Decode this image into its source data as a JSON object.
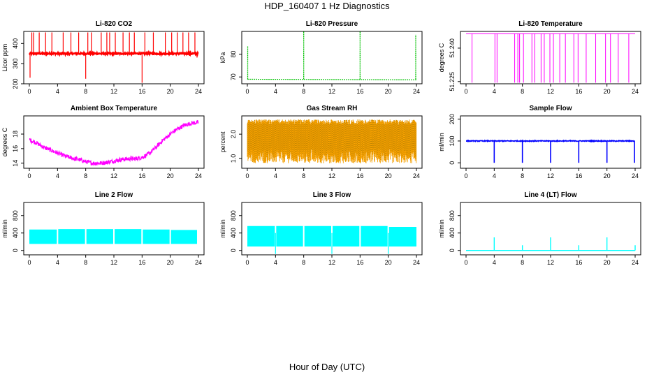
{
  "page": {
    "title": "HDP_160407  1 Hz Diagnostics",
    "xlabel": "Hour of Day (UTC)"
  },
  "chart_data": [
    {
      "type": "line",
      "title": "Li-820 CO2",
      "ylabel": "Licor ppm",
      "color": "#ff0000",
      "xlim": [
        0,
        24
      ],
      "xticks": [
        "0",
        "4",
        "8",
        "12",
        "16",
        "20",
        "24"
      ],
      "ylim": [
        200,
        460
      ],
      "yticks": [
        "200",
        "300",
        "400"
      ],
      "ytick_values": [
        200,
        300,
        400
      ],
      "baseline": 350,
      "spikes_up_at": [
        0.35,
        0.6,
        1.4,
        2.3,
        3.2,
        4.8,
        5.9,
        7.0,
        8.3,
        8.8,
        10.2,
        11.0,
        11.4,
        12.2,
        13.3,
        14.2,
        14.9,
        16.4,
        17.6,
        19.3,
        20.2,
        21.0,
        21.8,
        22.6,
        23.5
      ],
      "spikes_down_at": [
        [
          0.1,
          230
        ],
        [
          8.0,
          225
        ],
        [
          16.0,
          205
        ],
        [
          23.8,
          330
        ]
      ]
    },
    {
      "type": "line",
      "title": "Li-820 Pressure",
      "ylabel": "kPa",
      "color": "#00c000",
      "xlim": [
        0,
        24
      ],
      "xticks": [
        "0",
        "4",
        "8",
        "12",
        "16",
        "20",
        "24"
      ],
      "ylim": [
        67,
        90
      ],
      "yticks": [
        "70",
        "80"
      ],
      "ytick_values": [
        70,
        80
      ],
      "baseline": 69.0,
      "spikes_up_at": [
        [
          0.05,
          83.5
        ],
        [
          8.0,
          90
        ],
        [
          16.0,
          90
        ],
        [
          23.9,
          88.5
        ]
      ]
    },
    {
      "type": "line",
      "title": "Li-820 Temperature",
      "ylabel": "degrees C",
      "color": "#ff00ff",
      "xlim": [
        0,
        24
      ],
      "xticks": [
        "0",
        "4",
        "8",
        "12",
        "16",
        "20",
        "24"
      ],
      "ylim": [
        51.224,
        51.2475
      ],
      "yticks": [
        "51.225",
        "51.240"
      ],
      "ytick_values": [
        51.225,
        51.24
      ],
      "high_value": 51.2465,
      "low_value": 51.2245,
      "drops_at": [
        0.85,
        4.1,
        4.4,
        6.9,
        7.35,
        7.6,
        8.15,
        9.35,
        9.75,
        10.65,
        11.1,
        11.9,
        12.4,
        13.3,
        14.1,
        15.3,
        15.9,
        17.05,
        18.4,
        19.8,
        20.5,
        21.6,
        23.1
      ]
    },
    {
      "type": "line",
      "title": "Ambient Box Temperature",
      "ylabel": "degrees C",
      "color": "#ff00ff",
      "xlim": [
        0,
        24
      ],
      "xticks": [
        "0",
        "4",
        "8",
        "12",
        "16",
        "20",
        "24"
      ],
      "ylim": [
        13.3,
        20.5
      ],
      "yticks": [
        "14",
        "16",
        "18"
      ],
      "ytick_values": [
        14,
        16,
        18
      ],
      "x": [
        0,
        1,
        2,
        3,
        4,
        5,
        6,
        7,
        8,
        9,
        10,
        11,
        12,
        13,
        14,
        15,
        16,
        17,
        18,
        19,
        20,
        21,
        22,
        23,
        24
      ],
      "y": [
        17.2,
        16.8,
        16.2,
        15.8,
        15.4,
        15.0,
        14.7,
        14.5,
        14.2,
        14.0,
        14.0,
        14.1,
        14.3,
        14.5,
        14.6,
        14.6,
        14.8,
        15.3,
        16.2,
        17.2,
        18.0,
        18.7,
        19.2,
        19.5,
        19.6
      ]
    },
    {
      "type": "line",
      "title": "Gas Stream RH",
      "ylabel": "percent",
      "color": "#ffa500",
      "xlim": [
        0,
        24
      ],
      "xticks": [
        "0",
        "4",
        "8",
        "12",
        "16",
        "20",
        "24"
      ],
      "ylim": [
        0.6,
        2.75
      ],
      "yticks": [
        "1.0",
        "2.0"
      ],
      "ytick_values": [
        1.0,
        2.0
      ],
      "band_upper": 2.6,
      "band_lower": 0.8
    },
    {
      "type": "line",
      "title": "Sample Flow",
      "ylabel": "ml/min",
      "color": "#0000ff",
      "xlim": [
        0,
        24
      ],
      "xticks": [
        "0",
        "4",
        "8",
        "12",
        "16",
        "20",
        "24"
      ],
      "ylim": [
        -25,
        215
      ],
      "yticks": [
        "0",
        "100",
        "200"
      ],
      "ytick_values": [
        0,
        100,
        200
      ],
      "baseline": 100,
      "drops_at": [
        [
          4.0,
          0
        ],
        [
          8.0,
          0
        ],
        [
          12.0,
          0
        ],
        [
          16.0,
          0
        ],
        [
          20.0,
          0
        ],
        [
          23.9,
          0
        ]
      ]
    },
    {
      "type": "area",
      "title": "Line 2 Flow",
      "ylabel": "ml/min",
      "color": "#00ffff",
      "xlim": [
        0,
        24
      ],
      "xticks": [
        "0",
        "4",
        "8",
        "12",
        "16",
        "20",
        "24"
      ],
      "ylim": [
        -100,
        1100
      ],
      "yticks": [
        "0",
        "400",
        "800"
      ],
      "ytick_values": [
        0,
        400,
        800
      ],
      "segments": [
        [
          0.0,
          3.9,
          480,
          150
        ],
        [
          4.1,
          7.9,
          490,
          150
        ],
        [
          8.1,
          11.9,
          490,
          150
        ],
        [
          12.1,
          15.9,
          490,
          150
        ],
        [
          16.1,
          19.9,
          480,
          150
        ],
        [
          20.1,
          23.8,
          470,
          150
        ]
      ]
    },
    {
      "type": "area",
      "title": "Line 3 Flow",
      "ylabel": "ml/min",
      "color": "#00ffff",
      "xlim": [
        0,
        24
      ],
      "xticks": [
        "0",
        "4",
        "8",
        "12",
        "16",
        "20",
        "24"
      ],
      "ylim": [
        -100,
        1100
      ],
      "yticks": [
        "0",
        "400",
        "800"
      ],
      "ytick_values": [
        0,
        400,
        800
      ],
      "segments": [
        [
          0.0,
          3.9,
          560,
          90
        ],
        [
          4.1,
          7.9,
          560,
          90
        ],
        [
          8.1,
          11.9,
          560,
          90
        ],
        [
          12.1,
          15.9,
          560,
          90
        ],
        [
          16.1,
          19.9,
          560,
          90
        ],
        [
          20.1,
          24.0,
          540,
          90
        ]
      ]
    },
    {
      "type": "line",
      "title": "Line 4 (LT) Flow",
      "ylabel": "ml/min",
      "color": "#00ffff",
      "xlim": [
        0,
        24
      ],
      "xticks": [
        "0",
        "4",
        "8",
        "12",
        "16",
        "20",
        "24"
      ],
      "ylim": [
        -100,
        1100
      ],
      "yticks": [
        "0",
        "400",
        "800"
      ],
      "ytick_values": [
        0,
        400,
        800
      ],
      "baseline": 0,
      "spikes_up_at": [
        [
          4.0,
          300
        ],
        [
          8.0,
          120
        ],
        [
          12.0,
          300
        ],
        [
          16.0,
          120
        ],
        [
          20.0,
          300
        ],
        [
          24.0,
          120
        ]
      ]
    }
  ]
}
